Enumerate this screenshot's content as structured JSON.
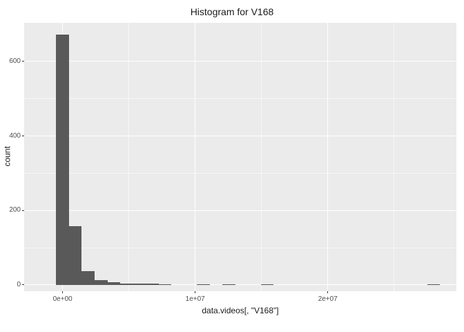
{
  "title": "Histogram for V168",
  "chart_data": {
    "type": "bar",
    "title": "Histogram for V168",
    "xlabel": "data.videos[, \"V168\"]",
    "ylabel": "count",
    "x_ticks": [
      {
        "value": 0,
        "label": "0e+00"
      },
      {
        "value": 10000000,
        "label": "1e+07"
      },
      {
        "value": 20000000,
        "label": "2e+07"
      }
    ],
    "x_minor_ticks": [
      5000000,
      15000000,
      25000000
    ],
    "y_ticks": [
      0,
      200,
      400,
      600
    ],
    "y_minor_ticks": [
      100,
      300,
      500
    ],
    "xlim": [
      -2900000,
      29700000
    ],
    "ylim": [
      -17,
      704
    ],
    "bin_width": 965000,
    "first_center": 0,
    "counts": [
      672,
      157,
      37,
      12,
      7,
      4,
      3,
      3,
      2,
      0,
      0,
      2,
      0,
      2,
      0,
      0,
      2,
      0,
      0,
      0,
      0,
      0,
      0,
      0,
      0,
      0,
      0,
      0,
      0,
      1
    ],
    "bar_color": "#595959",
    "panel_bg": "#EBEBEB",
    "grid_major_color": "#FFFFFF",
    "grid_minor_color": "rgba(255,255,255,0.55)",
    "tick_color": "#333333",
    "tick_label_color": "#4D4D4D"
  }
}
